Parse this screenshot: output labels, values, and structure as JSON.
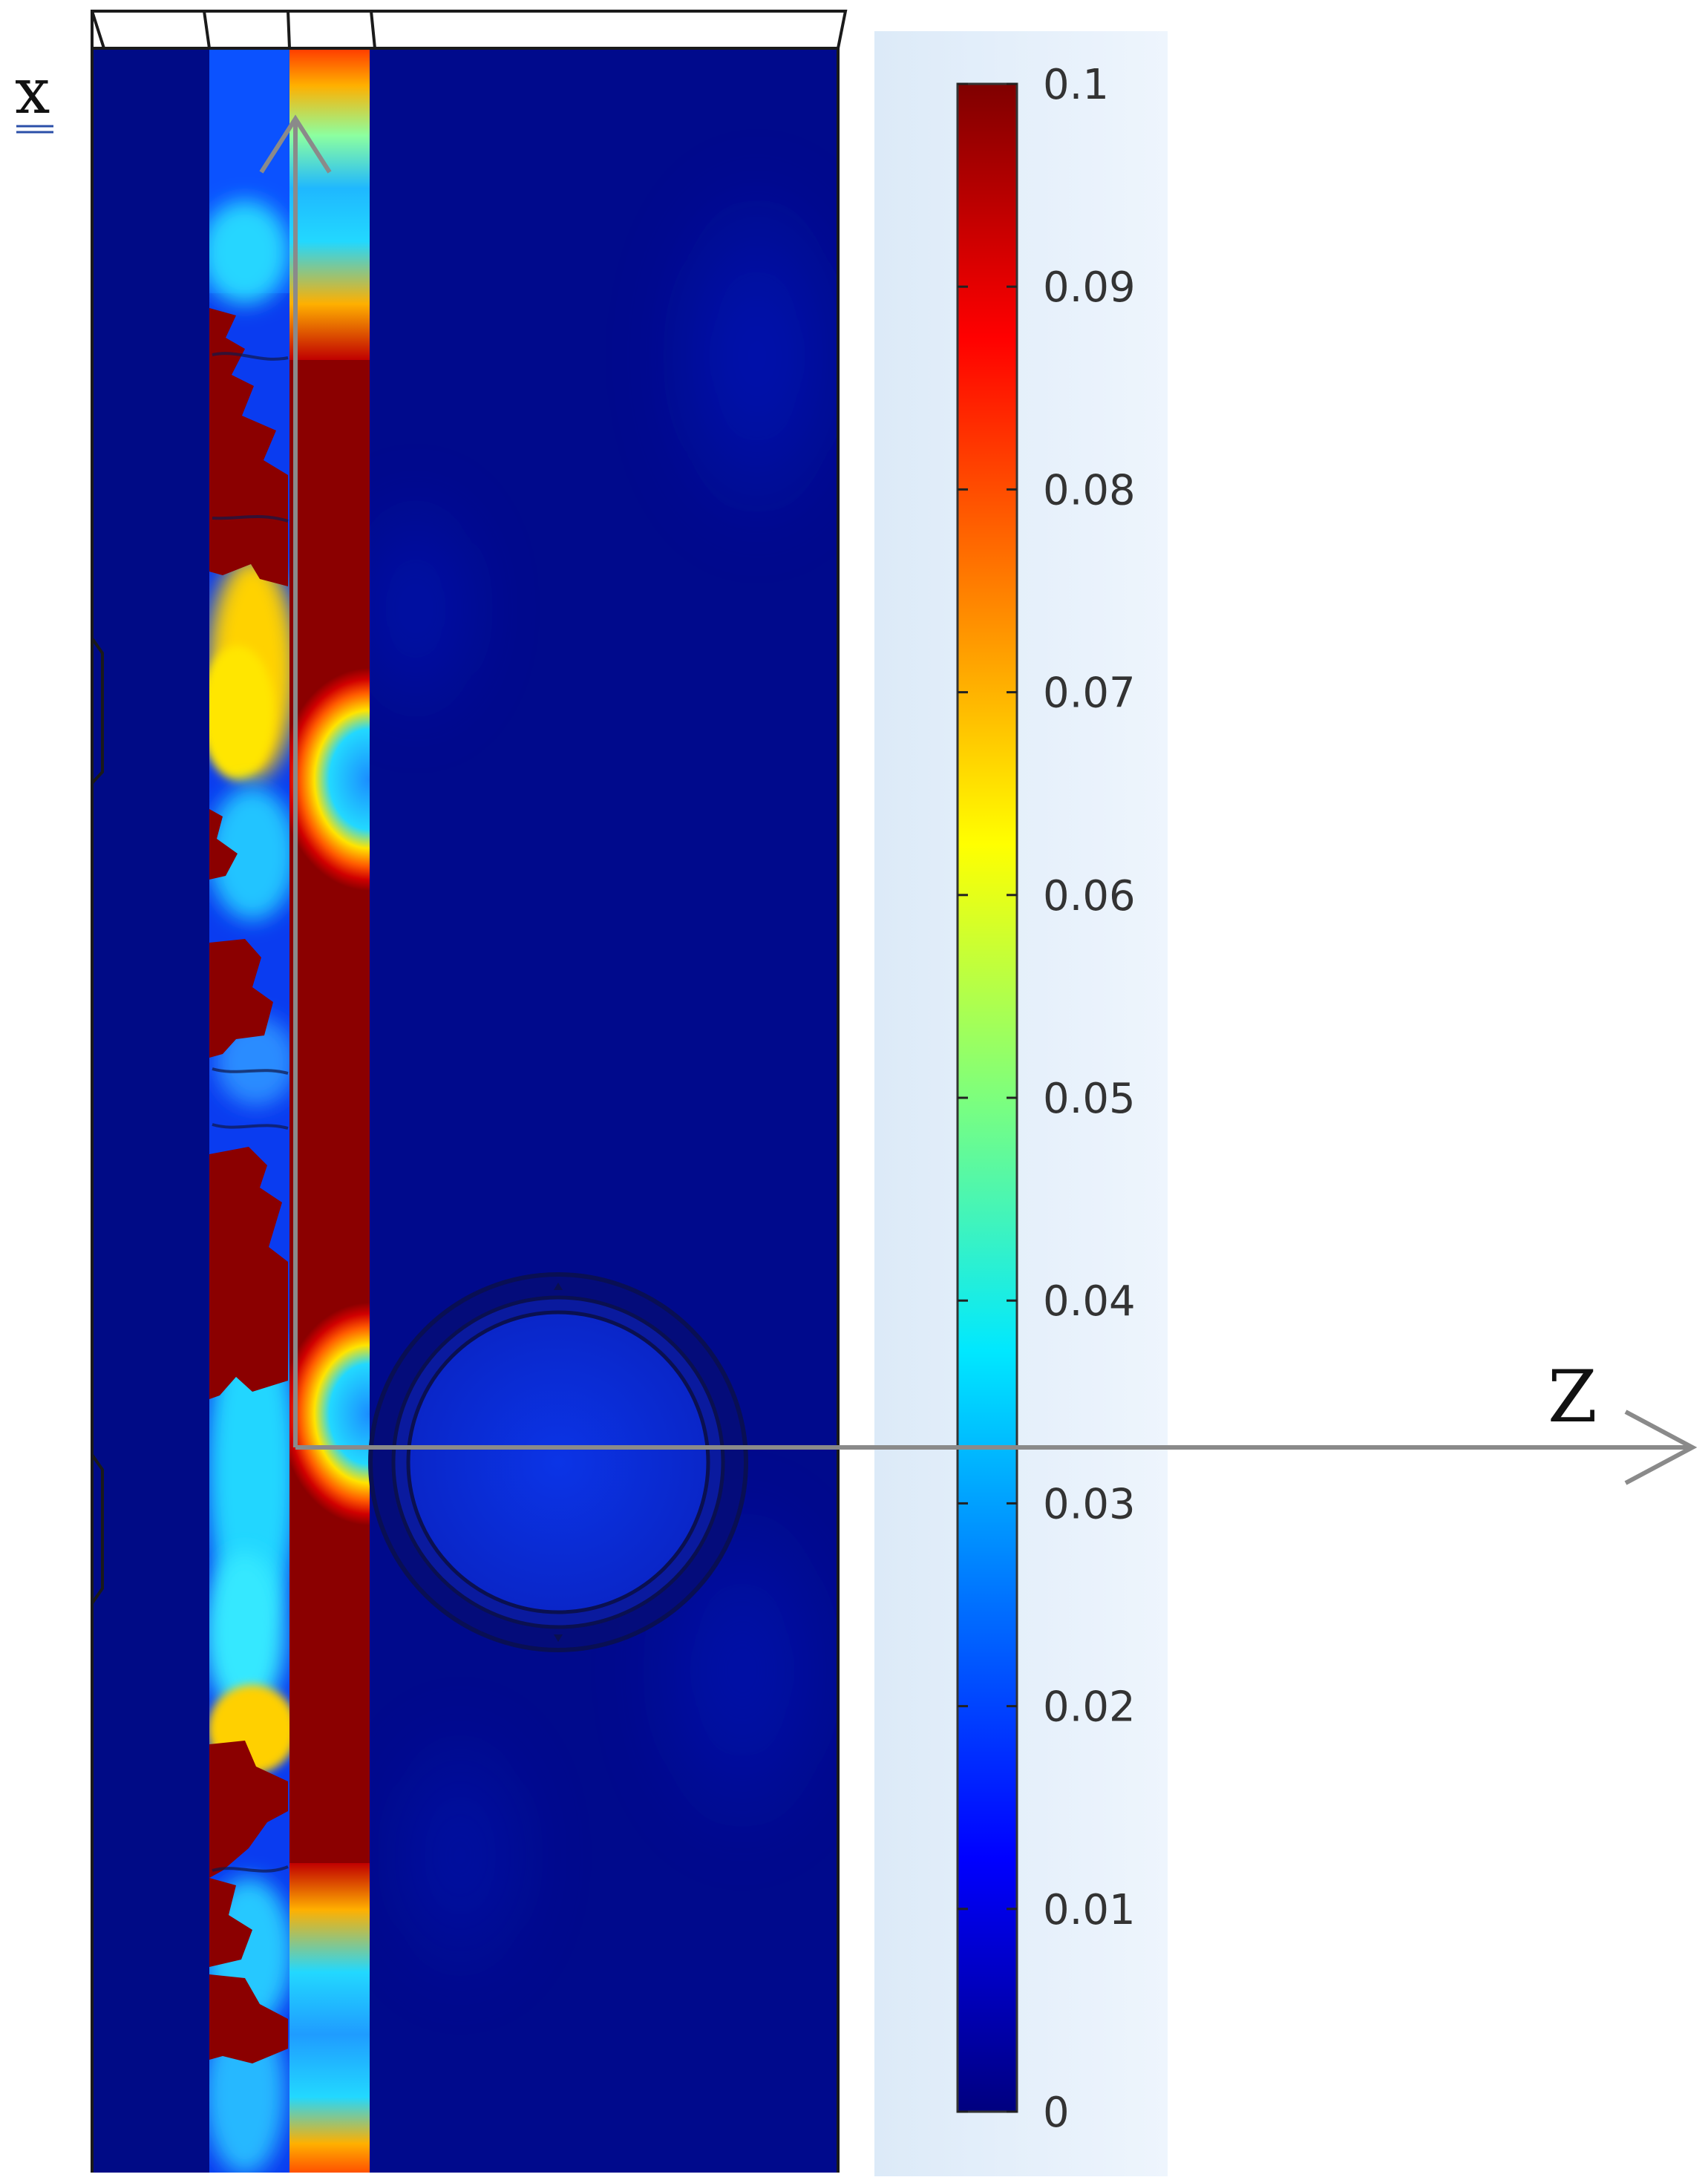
{
  "axes": {
    "vertical_label": "x",
    "horizontal_label": "Z",
    "arrow_color": "#8a8a8a"
  },
  "colorbar": {
    "min": 0,
    "max": 0.1,
    "tick_labels": [
      "0.1",
      "0.09",
      "0.08",
      "0.07",
      "0.06",
      "0.05",
      "0.04",
      "0.03",
      "0.02",
      "0.01",
      "0"
    ],
    "colormap": [
      "#00007f",
      "#0000ff",
      "#007fff",
      "#00ffff",
      "#7fff7f",
      "#ffff00",
      "#ff7f00",
      "#ff0000",
      "#7f0000"
    ],
    "panel_color": "#e7f1fb"
  },
  "field_colors": {
    "background": "#000a8c",
    "left_layer": "#000b86",
    "hot": "#8b0000",
    "hole": "#0a2ad6"
  }
}
